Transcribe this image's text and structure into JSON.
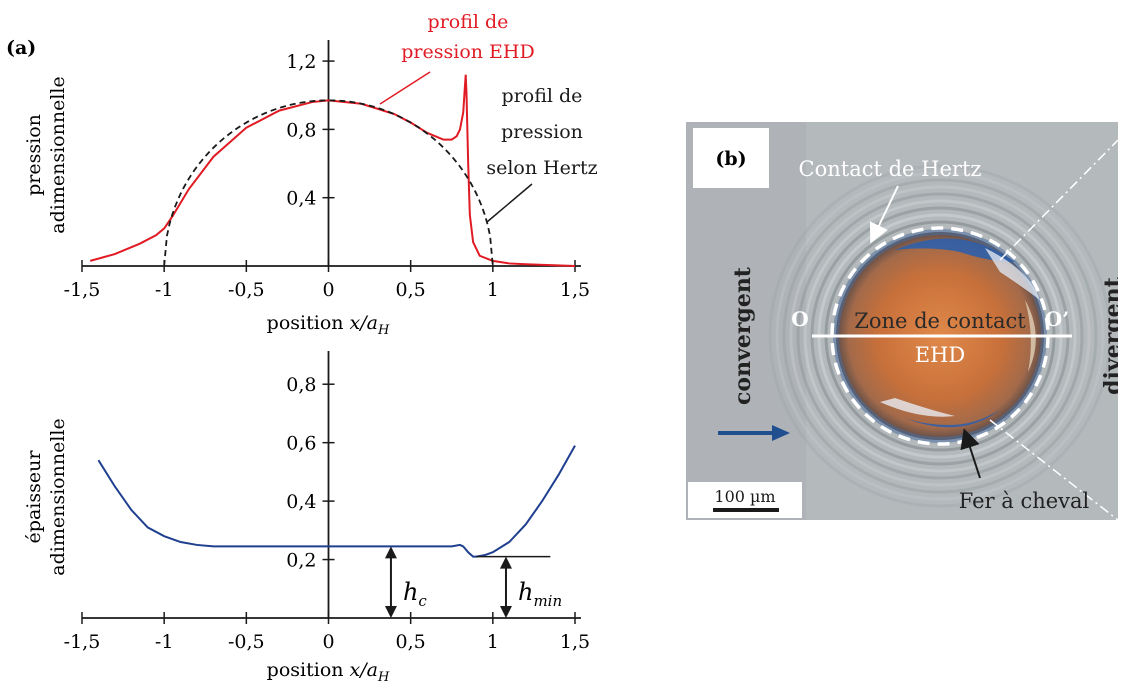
{
  "panel_a_label": "(a)",
  "panel_b_label": "(b)",
  "chart_data": [
    {
      "type": "line",
      "xlabel_prefix": "position ",
      "xlabel_var": "x/a",
      "xlabel_sub": "H",
      "ylabel_lines": [
        "pression",
        "adimensionnelle"
      ],
      "xlim": [
        -1.5,
        1.5
      ],
      "ylim": [
        0,
        1.3
      ],
      "xticks": [
        -1.5,
        -1,
        -0.5,
        0,
        0.5,
        1,
        1.5
      ],
      "xtick_labels": [
        "-1,5",
        "-1",
        "-0,5",
        "0",
        "0,5",
        "1",
        "1,5"
      ],
      "yticks": [
        0.4,
        0.8,
        1.2
      ],
      "ytick_labels": [
        "0,4",
        "0,8",
        "1,2"
      ],
      "series": [
        {
          "name": "profil de pression EHD",
          "name_lines": [
            "profil de",
            "pression EHD"
          ],
          "color": "#e01b24",
          "style": "solid",
          "x": [
            -1.45,
            -1.3,
            -1.15,
            -1.05,
            -1.0,
            -0.95,
            -0.85,
            -0.7,
            -0.5,
            -0.3,
            -0.1,
            0.0,
            0.2,
            0.4,
            0.5,
            0.6,
            0.7,
            0.75,
            0.78,
            0.8,
            0.82,
            0.83,
            0.835,
            0.84,
            0.85,
            0.86,
            0.88,
            0.92,
            1.0,
            1.1,
            1.2,
            1.35,
            1.5
          ],
          "y": [
            0.03,
            0.07,
            0.13,
            0.18,
            0.22,
            0.29,
            0.45,
            0.64,
            0.81,
            0.91,
            0.96,
            0.97,
            0.95,
            0.89,
            0.84,
            0.78,
            0.74,
            0.74,
            0.76,
            0.8,
            0.9,
            1.05,
            1.12,
            1.0,
            0.6,
            0.3,
            0.14,
            0.06,
            0.03,
            0.015,
            0.01,
            0.005,
            0.0
          ]
        },
        {
          "name": "profil de pression selon Hertz",
          "name_lines": [
            "profil de",
            "pression",
            "selon Hertz"
          ],
          "color": "#1a1a1a",
          "style": "dashed",
          "hertz": true,
          "amplitude": 0.97
        }
      ]
    },
    {
      "type": "line",
      "xlabel_prefix": "position ",
      "xlabel_var": "x/a",
      "xlabel_sub": "H",
      "ylabel_lines": [
        "épaisseur",
        "adimensionnelle"
      ],
      "xlim": [
        -1.5,
        1.5
      ],
      "ylim": [
        0,
        0.9
      ],
      "xticks": [
        -1.5,
        -1,
        -0.5,
        0,
        0.5,
        1,
        1.5
      ],
      "xtick_labels": [
        "-1,5",
        "-1",
        "-0,5",
        "0",
        "0,5",
        "1",
        "1,5"
      ],
      "yticks": [
        0.2,
        0.4,
        0.6,
        0.8
      ],
      "ytick_labels": [
        "0,2",
        "0,4",
        "0,6",
        "0,8"
      ],
      "series": [
        {
          "color": "#1f3f8f",
          "x": [
            -1.4,
            -1.3,
            -1.2,
            -1.1,
            -1.0,
            -0.9,
            -0.8,
            -0.7,
            -0.5,
            0.0,
            0.5,
            0.75,
            0.8,
            0.82,
            0.85,
            0.88,
            0.9,
            0.95,
            1.0,
            1.1,
            1.2,
            1.3,
            1.4,
            1.5
          ],
          "y": [
            0.54,
            0.45,
            0.37,
            0.31,
            0.28,
            0.26,
            0.25,
            0.245,
            0.245,
            0.245,
            0.245,
            0.245,
            0.25,
            0.245,
            0.225,
            0.21,
            0.21,
            0.215,
            0.225,
            0.26,
            0.32,
            0.4,
            0.49,
            0.59
          ]
        }
      ],
      "annotations": {
        "hc": {
          "sym": "h",
          "sub": "c",
          "x": 0.38,
          "y_top": 0.245
        },
        "hmin": {
          "sym": "h",
          "sub": "min",
          "x": 1.08,
          "y_top": 0.21
        }
      }
    }
  ],
  "photo": {
    "contact_hertz": "Contact de Hertz",
    "zone_line1": "Zone de contact",
    "zone_line2": "EHD",
    "label_o": "O",
    "label_o_prime": "O’",
    "convergent": "convergent",
    "divergent": "divergent",
    "fer_a_cheval": "Fer à cheval",
    "scale_bar": "100 µm",
    "colors": {
      "background": "#b4b9bc",
      "contact_center": "#d9733f",
      "contact_edge": "#8a5a44",
      "horseshoe": "#2f5fa8",
      "flow_arrow": "#1f4f8f"
    }
  }
}
